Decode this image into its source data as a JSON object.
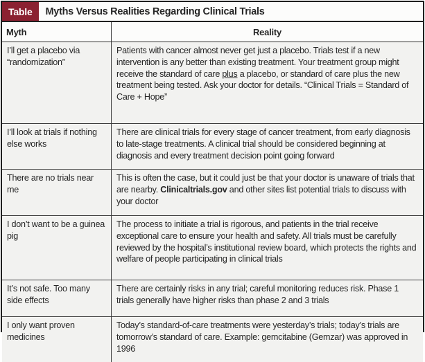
{
  "figure": {
    "badge_label": "Table",
    "title": "Myths Versus Realities Regarding Clinical Trials"
  },
  "columns": [
    {
      "key": "myth",
      "label": "Myth"
    },
    {
      "key": "reality",
      "label": "Reality"
    }
  ],
  "rows": [
    {
      "myth": "I’ll get a placebo via “randomization”",
      "reality": [
        {
          "text": "Patients with cancer almost never get just a placebo. Trials test if a new intervention is any better than existing treatment. Your treatment group might receive the standard of care "
        },
        {
          "text": "plus",
          "underline": true
        },
        {
          "text": " a placebo, or standard of care plus the new treatment being tested. Ask your doctor for details. “Clinical Trials = Standard of Care + Hope”"
        }
      ]
    },
    {
      "myth": "I’ll look at trials if nothing else works",
      "reality": [
        {
          "text": "There are clinical trials for every stage of cancer treatment, from early diagnosis to late-stage treatments. A clinical trial should be considered beginning at diagnosis and every treatment decision point going forward"
        }
      ]
    },
    {
      "myth": "There are no trials near me",
      "reality": [
        {
          "text": "This is often the case, but it could just be that your doctor is unaware of trials that are nearby. "
        },
        {
          "text": "Clinicaltrials.gov",
          "bold": true
        },
        {
          "text": " and other sites list potential trials to discuss with your doctor"
        }
      ]
    },
    {
      "myth": "I don’t want to be a guinea pig",
      "reality": [
        {
          "text": "The process to initiate a trial is rigorous, and patients in the trial receive exceptional care to ensure your health and safety. All trials must be carefully reviewed by the hospital’s institutional review board, which protects the rights and welfare of people participating in clinical trials"
        }
      ]
    },
    {
      "myth": "It’s not safe. Too many side effects",
      "reality": [
        {
          "text": "There are certainly risks in any trial; careful monitoring reduces risk. Phase 1 trials generally have higher risks than phase 2 and 3 trials"
        }
      ]
    },
    {
      "myth": "I only want proven medicines",
      "reality": [
        {
          "text": "Today’s standard-of-care treatments were yesterday’s trials; today’s trials are tomorrow’s standard of care. Example: gemcitabine (Gemzar) was approved in 1996"
        }
      ]
    }
  ],
  "colors": {
    "badge_bg": "#8B2131",
    "badge_text": "#FFFFFF",
    "border": "#1F1F1F",
    "text": "#262626",
    "cell_bg": "#F2F2F0",
    "header_bg": "#FCFCFB"
  }
}
